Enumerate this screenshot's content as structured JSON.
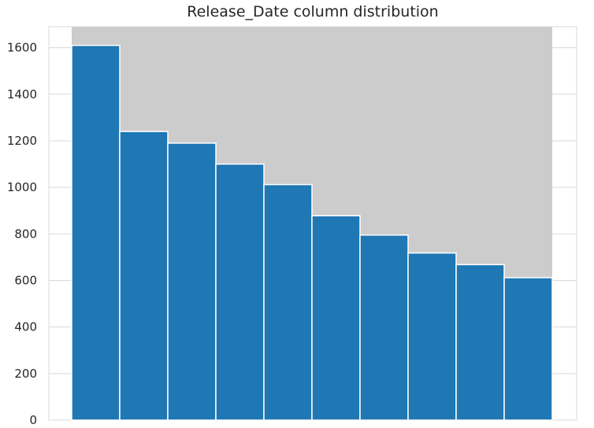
{
  "chart_data": {
    "type": "bar",
    "title": "Release_Date column distribution",
    "xlabel": "",
    "ylabel": "",
    "ylim": [
      0,
      1690
    ],
    "yticks": [
      0,
      200,
      400,
      600,
      800,
      1000,
      1200,
      1400,
      1600
    ],
    "values": [
      1610,
      1240,
      1190,
      1100,
      1012,
      878,
      795,
      718,
      668,
      612
    ],
    "grid": true,
    "highlight_color": "#cccccc",
    "bar_color": "#1f77b4",
    "background_color": "#ffffff",
    "grid_color": "#d9d9d9",
    "text_color": "#262626"
  }
}
